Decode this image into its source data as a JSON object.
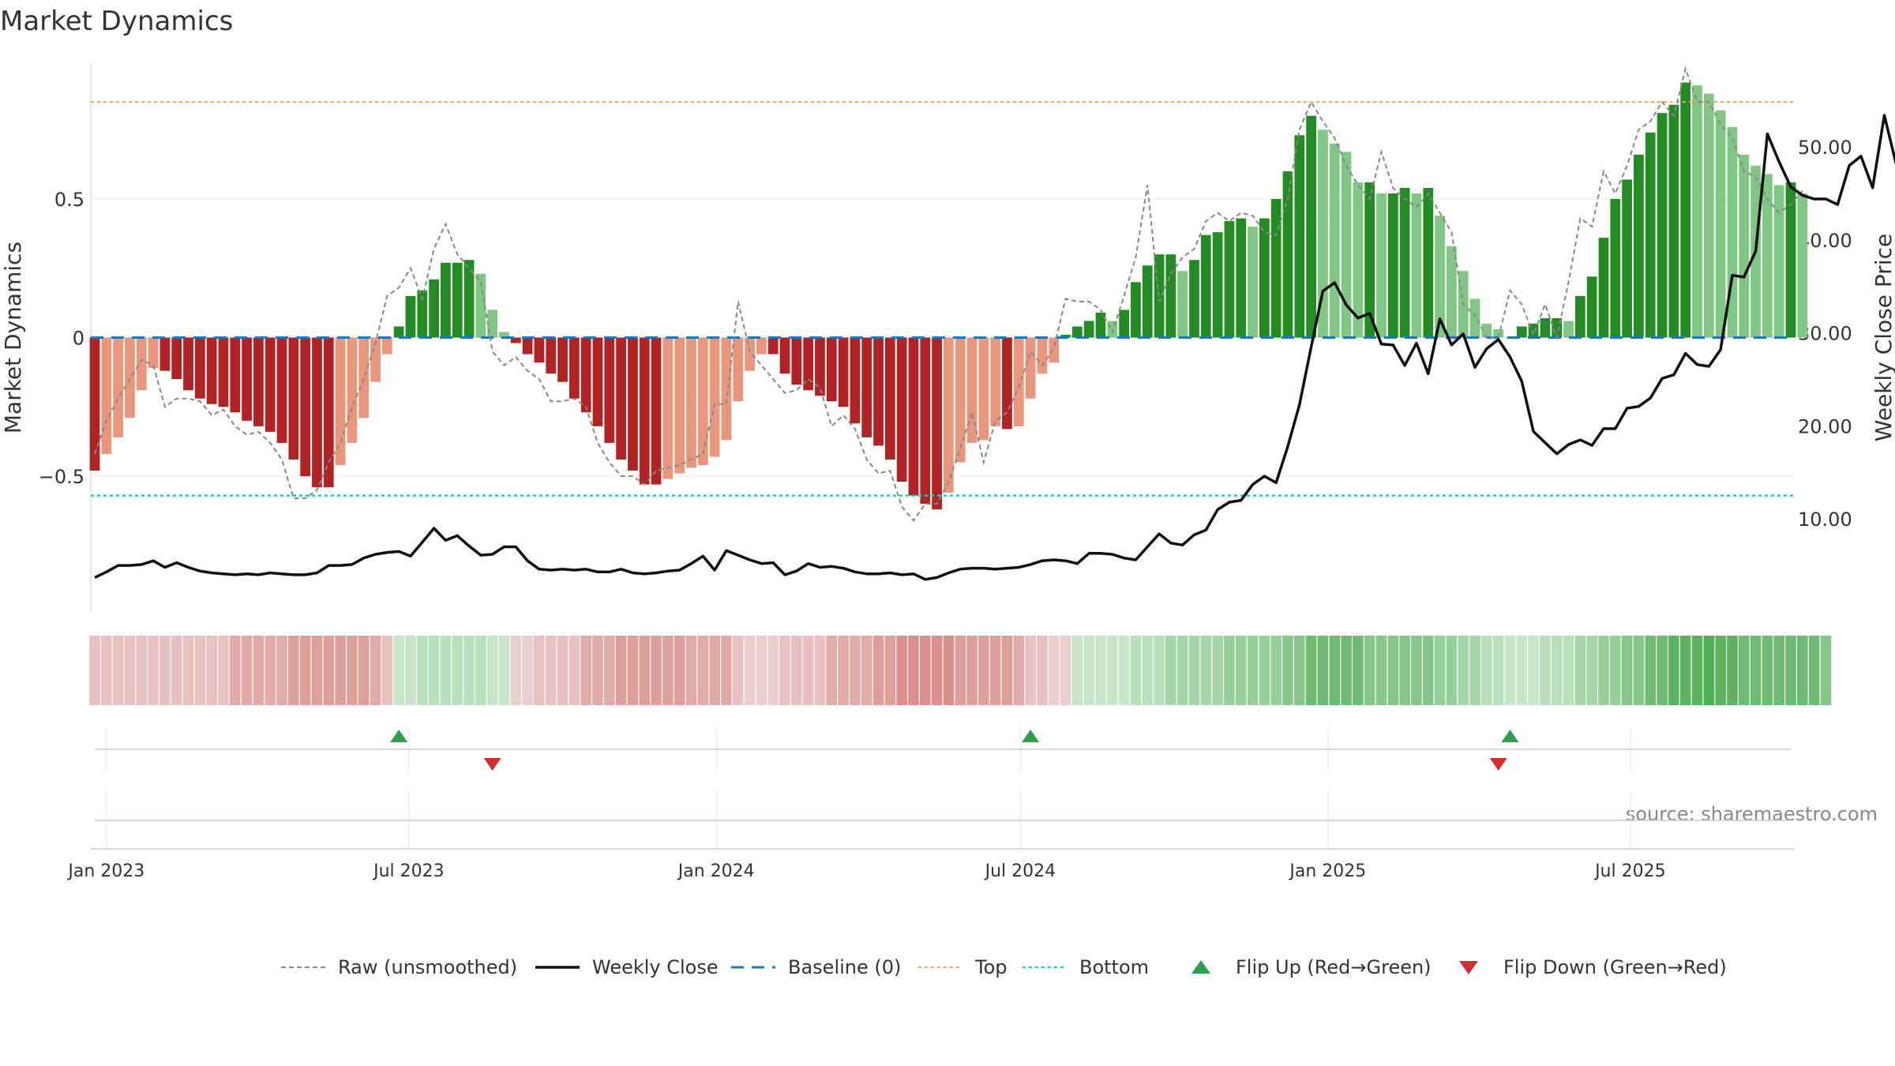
{
  "title": "Market Dynamics",
  "source_note": "source: sharemaestro.com",
  "colors": {
    "strong_red": "#b22222",
    "light_red": "#e9967a",
    "strong_green": "#228b22",
    "light_green": "#81c784",
    "top_line": "#f4a261",
    "bottom_line": "#2ec4c4",
    "baseline": "#1f77b4",
    "raw": "#888888",
    "close": "#111111",
    "flip_up": "#2e9e4f",
    "flip_down": "#d32f2f"
  },
  "chart_data": {
    "type": "bar",
    "title": "Market Dynamics",
    "ylabel": "Market Dynamics",
    "y2label": "Weekly Close Price",
    "ylim": [
      -0.99,
      0.99
    ],
    "y2lim": [
      0.0,
      59.0
    ],
    "yticks": [
      -0.5,
      0,
      0.5
    ],
    "ytick_labels": [
      "−0.5",
      "0",
      "0.5"
    ],
    "y2ticks": [
      10,
      20,
      30,
      40,
      50
    ],
    "y2tick_labels": [
      "10.00",
      "20.00",
      "30.00",
      "40.00",
      "50.00"
    ],
    "x_start_week": "2022-12-25",
    "x_end_week": "2025-10-05",
    "xticks": [
      {
        "date": "2023-01-01",
        "label": "Jan 2023"
      },
      {
        "date": "2023-07-01",
        "label": "Jul 2023"
      },
      {
        "date": "2024-01-01",
        "label": "Jan 2024"
      },
      {
        "date": "2024-07-01",
        "label": "Jul 2024"
      },
      {
        "date": "2025-01-01",
        "label": "Jan 2025"
      },
      {
        "date": "2025-07-01",
        "label": "Jul 2025"
      }
    ],
    "top_level": 0.85,
    "bottom_level": -0.57,
    "baseline_level": 0,
    "grid": true,
    "legend_position": "bottom",
    "legend": [
      {
        "label": "Raw (unsmoothed)",
        "style": "raw"
      },
      {
        "label": "Weekly Close",
        "style": "close"
      },
      {
        "label": "Baseline (0)",
        "style": "baseline"
      },
      {
        "label": "Top",
        "style": "top"
      },
      {
        "label": "Bottom",
        "style": "bottom"
      },
      {
        "label": "Flip Up (Red→Green)",
        "style": "flip_up"
      },
      {
        "label": "Flip Down (Green→Red)",
        "style": "flip_down"
      }
    ],
    "bar_values": [
      -0.48,
      -0.42,
      -0.36,
      -0.29,
      -0.19,
      -0.11,
      -0.12,
      -0.15,
      -0.19,
      -0.22,
      -0.24,
      -0.25,
      -0.27,
      -0.3,
      -0.32,
      -0.34,
      -0.38,
      -0.44,
      -0.5,
      -0.54,
      -0.54,
      -0.46,
      -0.38,
      -0.29,
      -0.16,
      -0.06,
      0.04,
      0.15,
      0.17,
      0.21,
      0.27,
      0.27,
      0.28,
      0.23,
      0.1,
      0.02,
      -0.02,
      -0.06,
      -0.09,
      -0.13,
      -0.16,
      -0.22,
      -0.27,
      -0.32,
      -0.38,
      -0.44,
      -0.48,
      -0.53,
      -0.53,
      -0.51,
      -0.49,
      -0.47,
      -0.46,
      -0.43,
      -0.37,
      -0.23,
      -0.12,
      -0.06,
      -0.06,
      -0.13,
      -0.17,
      -0.19,
      -0.21,
      -0.23,
      -0.25,
      -0.31,
      -0.36,
      -0.39,
      -0.44,
      -0.52,
      -0.57,
      -0.6,
      -0.62,
      -0.56,
      -0.45,
      -0.38,
      -0.37,
      -0.32,
      -0.33,
      -0.32,
      -0.22,
      -0.13,
      -0.09,
      0.01,
      0.04,
      0.06,
      0.09,
      0.06,
      0.1,
      0.2,
      0.26,
      0.3,
      0.3,
      0.24,
      0.28,
      0.37,
      0.38,
      0.42,
      0.43,
      0.4,
      0.43,
      0.5,
      0.6,
      0.73,
      0.8,
      0.75,
      0.7,
      0.67,
      0.56,
      0.56,
      0.52,
      0.52,
      0.54,
      0.52,
      0.54,
      0.44,
      0.33,
      0.24,
      0.14,
      0.05,
      0.03,
      0.0,
      0.04,
      0.05,
      0.07,
      0.07,
      0.06,
      0.15,
      0.22,
      0.36,
      0.5,
      0.57,
      0.66,
      0.74,
      0.81,
      0.84,
      0.92,
      0.91,
      0.88,
      0.82,
      0.76,
      0.66,
      0.62,
      0.59,
      0.55,
      0.56,
      0.52
    ],
    "raw_values": [
      -0.42,
      -0.3,
      -0.22,
      -0.15,
      -0.08,
      -0.1,
      -0.25,
      -0.22,
      -0.22,
      -0.23,
      -0.28,
      -0.26,
      -0.32,
      -0.35,
      -0.34,
      -0.38,
      -0.44,
      -0.58,
      -0.58,
      -0.55,
      -0.45,
      -0.38,
      -0.25,
      -0.15,
      -0.02,
      0.15,
      0.18,
      0.25,
      0.14,
      0.32,
      0.41,
      0.3,
      0.25,
      0.2,
      -0.05,
      -0.1,
      -0.07,
      -0.12,
      -0.15,
      -0.23,
      -0.23,
      -0.22,
      -0.25,
      -0.38,
      -0.45,
      -0.5,
      -0.5,
      -0.53,
      -0.48,
      -0.47,
      -0.46,
      -0.44,
      -0.42,
      -0.24,
      -0.24,
      0.13,
      -0.05,
      -0.1,
      -0.15,
      -0.2,
      -0.19,
      -0.15,
      -0.18,
      -0.32,
      -0.28,
      -0.33,
      -0.44,
      -0.49,
      -0.48,
      -0.61,
      -0.66,
      -0.6,
      -0.6,
      -0.52,
      -0.4,
      -0.27,
      -0.45,
      -0.3,
      -0.27,
      -0.18,
      -0.05,
      -0.1,
      -0.04,
      0.14,
      0.13,
      0.13,
      0.1,
      0.02,
      0.15,
      0.29,
      0.55,
      0.13,
      0.23,
      0.29,
      0.32,
      0.42,
      0.45,
      0.42,
      0.45,
      0.44,
      0.38,
      0.37,
      0.5,
      0.75,
      0.85,
      0.78,
      0.72,
      0.62,
      0.55,
      0.5,
      0.67,
      0.54,
      0.5,
      0.47,
      0.52,
      0.45,
      0.38,
      0.12,
      0.08,
      0.0,
      0.0,
      0.17,
      0.12,
      0.01,
      0.12,
      0.0,
      0.2,
      0.43,
      0.4,
      0.6,
      0.52,
      0.62,
      0.75,
      0.78,
      0.85,
      0.8,
      0.97,
      0.85,
      0.85,
      0.77,
      0.72,
      0.6,
      0.58,
      0.5,
      0.45,
      0.48,
      0.53
    ],
    "close_values": [
      3.7,
      4.3,
      5.0,
      5.0,
      5.1,
      5.5,
      4.8,
      5.3,
      4.8,
      4.4,
      4.2,
      4.1,
      4.0,
      4.1,
      4.0,
      4.2,
      4.1,
      4.0,
      4.0,
      4.2,
      5.0,
      5.0,
      5.1,
      5.8,
      6.2,
      6.4,
      6.5,
      6.0,
      7.5,
      9.0,
      7.7,
      8.2,
      7.1,
      6.1,
      6.2,
      7.0,
      7.0,
      5.5,
      4.6,
      4.5,
      4.6,
      4.5,
      4.6,
      4.3,
      4.3,
      4.6,
      4.2,
      4.1,
      4.2,
      4.4,
      4.5,
      5.2,
      6.0,
      4.5,
      6.6,
      6.1,
      5.6,
      5.2,
      5.3,
      4.0,
      4.4,
      5.2,
      4.8,
      4.9,
      4.7,
      4.3,
      4.1,
      4.1,
      4.2,
      4.0,
      4.1,
      3.5,
      3.7,
      4.2,
      4.6,
      4.7,
      4.7,
      4.6,
      4.7,
      4.8,
      5.1,
      5.5,
      5.6,
      5.5,
      5.2,
      6.3,
      6.3,
      6.2,
      5.8,
      5.6,
      7.0,
      8.4,
      7.4,
      7.2,
      8.3,
      8.8,
      11.0,
      11.8,
      12.0,
      13.7,
      14.6,
      13.9,
      17.8,
      22.3,
      28.5,
      34.5,
      35.4,
      33.0,
      31.6,
      32.1,
      28.8,
      28.7,
      26.5,
      28.9,
      25.6,
      31.5,
      28.7,
      29.9,
      26.3,
      28.3,
      29.3,
      27.4,
      24.8,
      19.4,
      18.2,
      17.0,
      18.0,
      18.5,
      17.9,
      19.7,
      19.7,
      21.9,
      22.1,
      23.0,
      25.1,
      25.5,
      27.8,
      26.6,
      26.4,
      28.2,
      36.2,
      36.0,
      38.8,
      51.4,
      48.4,
      45.7,
      44.8,
      44.4,
      44.4,
      43.8,
      48.0,
      49.0,
      45.6,
      53.4,
      48.2
    ],
    "strip_colors": [
      "#e6c1bf",
      "#e6c1bf",
      "#e6c1bf",
      "#e6c1bf",
      "#e6c1bf",
      "#e6c1bf",
      "#e6c1bf",
      "#e6c1bf",
      "#e6c1bf",
      "#e6c1bf",
      "#e6c1bf",
      "#e6c1bf",
      "#e0aaa6",
      "#e0aaa6",
      "#e0aaa6",
      "#e0aaa6",
      "#e0aaa6",
      "#dd9f9a",
      "#dd9f9a",
      "#dd9f9a",
      "#dd9f9a",
      "#dd9f9a",
      "#dd9f9a",
      "#dd9f9a",
      "#e0aaa6",
      "#e6c1bf",
      "#c7e6c9",
      "#c7e6c9",
      "#b9e0bb",
      "#b9e0bb",
      "#b9e0bb",
      "#b9e0bb",
      "#b9e0bb",
      "#b9e0bb",
      "#c7e6c9",
      "#c7e6c9",
      "#e9cfcd",
      "#e9cfcd",
      "#e6c1bf",
      "#e6c1bf",
      "#e6c1bf",
      "#e6c1bf",
      "#e0aaa6",
      "#e0aaa6",
      "#e0aaa6",
      "#dd9f9a",
      "#dd9f9a",
      "#dd9f9a",
      "#dd9f9a",
      "#dd9f9a",
      "#dd9f9a",
      "#e0aaa6",
      "#e0aaa6",
      "#e0aaa6",
      "#e0aaa6",
      "#e6c1bf",
      "#e9cfcd",
      "#e9cfcd",
      "#e9cfcd",
      "#e6c1bf",
      "#e6c1bf",
      "#e6c1bf",
      "#e6c1bf",
      "#e0aaa6",
      "#e0aaa6",
      "#e0aaa6",
      "#e0aaa6",
      "#dd9f9a",
      "#dd9f9a",
      "#d98f8a",
      "#d98f8a",
      "#d98f8a",
      "#d98f8a",
      "#d98f8a",
      "#dd9f9a",
      "#dd9f9a",
      "#dd9f9a",
      "#dd9f9a",
      "#dd9f9a",
      "#e0aaa6",
      "#e6c1bf",
      "#e6c1bf",
      "#e9cfcd",
      "#e9cfcd",
      "#c7e6c9",
      "#c7e6c9",
      "#c7e6c9",
      "#c7e6c9",
      "#c7e6c9",
      "#b9e0bb",
      "#b9e0bb",
      "#b9e0bb",
      "#a5d6a7",
      "#a5d6a7",
      "#a5d6a7",
      "#a5d6a7",
      "#a5d6a7",
      "#96cf99",
      "#96cf99",
      "#96cf99",
      "#96cf99",
      "#96cf99",
      "#86c68a",
      "#86c68a",
      "#6fbb74",
      "#6fbb74",
      "#6fbb74",
      "#6fbb74",
      "#6fbb74",
      "#86c68a",
      "#86c68a",
      "#86c68a",
      "#86c68a",
      "#86c68a",
      "#86c68a",
      "#96cf99",
      "#96cf99",
      "#a5d6a7",
      "#a5d6a7",
      "#b9e0bb",
      "#b9e0bb",
      "#c7e6c9",
      "#c7e6c9",
      "#c7e6c9",
      "#b9e0bb",
      "#b9e0bb",
      "#b9e0bb",
      "#a5d6a7",
      "#a5d6a7",
      "#96cf99",
      "#96cf99",
      "#86c68a",
      "#86c68a",
      "#6fbb74",
      "#6fbb74",
      "#5eb363",
      "#5eb363",
      "#5eb363",
      "#4caf50",
      "#5eb363",
      "#5eb363",
      "#6fbb74",
      "#6fbb74",
      "#6fbb74",
      "#6fbb74",
      "#6fbb74",
      "#6fbb74",
      "#6fbb74",
      "#86c68a"
    ],
    "flip_up_dates": [
      "2023-06-25",
      "2024-07-07",
      "2025-04-20"
    ],
    "flip_down_dates": [
      "2023-08-20",
      "2025-04-13"
    ]
  }
}
